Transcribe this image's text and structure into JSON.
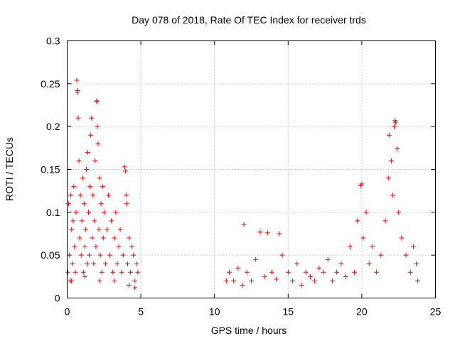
{
  "chart_data": {
    "type": "scatter",
    "title": "Day 078 of 2018, Rate Of TEC Index for receiver trds",
    "xlabel": "GPS time / hours",
    "ylabel": "ROTI / TECUs",
    "xlim": [
      0,
      25
    ],
    "ylim": [
      0,
      0.3
    ],
    "x_ticks": [
      0,
      5,
      10,
      15,
      20,
      25
    ],
    "x_tick_labels": [
      "0",
      "5",
      "10",
      "15",
      "20",
      "25"
    ],
    "y_ticks": [
      0,
      0.05,
      0.1,
      0.15,
      0.2,
      0.25,
      0.3
    ],
    "y_tick_labels": [
      "0",
      "0.05",
      "0.1",
      "0.15",
      "0.2",
      "0.25",
      "0.3"
    ],
    "grid": true,
    "marker": "+",
    "color": "#ff0000",
    "series": [
      {
        "name": "ROTI",
        "points": [
          [
            0.05,
            0.03
          ],
          [
            0.1,
            0.11
          ],
          [
            0.15,
            0.05
          ],
          [
            0.2,
            0.02
          ],
          [
            0.25,
            0.12
          ],
          [
            0.3,
            0.08
          ],
          [
            0.35,
            0.04
          ],
          [
            0.4,
            0.09
          ],
          [
            0.45,
            0.13
          ],
          [
            0.5,
            0.06
          ],
          [
            0.55,
            0.03
          ],
          [
            0.6,
            0.1
          ],
          [
            0.65,
            0.254
          ],
          [
            0.7,
            0.24
          ],
          [
            0.72,
            0.242
          ],
          [
            0.75,
            0.21
          ],
          [
            0.8,
            0.16
          ],
          [
            0.85,
            0.07
          ],
          [
            0.9,
            0.12
          ],
          [
            0.95,
            0.05
          ],
          [
            1.0,
            0.09
          ],
          [
            1.05,
            0.14
          ],
          [
            1.1,
            0.03
          ],
          [
            1.15,
            0.11
          ],
          [
            1.2,
            0.06
          ],
          [
            1.25,
            0.08
          ],
          [
            1.3,
            0.15
          ],
          [
            1.35,
            0.04
          ],
          [
            1.4,
            0.17
          ],
          [
            1.45,
            0.1
          ],
          [
            1.5,
            0.05
          ],
          [
            1.55,
            0.13
          ],
          [
            1.6,
            0.19
          ],
          [
            1.65,
            0.21
          ],
          [
            1.7,
            0.07
          ],
          [
            1.75,
            0.12
          ],
          [
            1.8,
            0.04
          ],
          [
            1.85,
            0.09
          ],
          [
            1.9,
            0.16
          ],
          [
            1.95,
            0.06
          ],
          [
            2.0,
            0.23
          ],
          [
            2.02,
            0.229
          ],
          [
            2.05,
            0.2
          ],
          [
            2.1,
            0.18
          ],
          [
            2.15,
            0.08
          ],
          [
            2.2,
            0.14
          ],
          [
            2.25,
            0.05
          ],
          [
            2.3,
            0.11
          ],
          [
            2.35,
            0.03
          ],
          [
            2.4,
            0.13
          ],
          [
            2.45,
            0.07
          ],
          [
            2.5,
            0.1
          ],
          [
            2.6,
            0.04
          ],
          [
            2.7,
            0.08
          ],
          [
            2.8,
            0.12
          ],
          [
            2.9,
            0.05
          ],
          [
            3.0,
            0.09
          ],
          [
            3.1,
            0.03
          ],
          [
            3.2,
            0.07
          ],
          [
            3.3,
            0.1
          ],
          [
            3.4,
            0.04
          ],
          [
            3.5,
            0.06
          ],
          [
            3.6,
            0.08
          ],
          [
            3.7,
            0.03
          ],
          [
            3.8,
            0.05
          ],
          [
            3.9,
            0.153
          ],
          [
            3.95,
            0.148
          ],
          [
            4.0,
            0.12
          ],
          [
            4.05,
            0.11
          ],
          [
            4.1,
            0.04
          ],
          [
            4.2,
            0.07
          ],
          [
            4.3,
            0.03
          ],
          [
            4.4,
            0.06
          ],
          [
            4.5,
            0.05
          ],
          [
            4.6,
            0.02
          ],
          [
            4.7,
            0.04
          ],
          [
            4.8,
            0.03
          ],
          [
            0.3,
            0.02
          ],
          [
            1.2,
            0.025
          ],
          [
            2.2,
            0.02
          ],
          [
            3.2,
            0.02
          ],
          [
            4.2,
            0.015
          ],
          [
            4.6,
            0.012
          ],
          [
            10.8,
            0.02
          ],
          [
            11.0,
            0.03
          ],
          [
            11.3,
            0.02
          ],
          [
            11.6,
            0.035
          ],
          [
            11.9,
            0.015
          ],
          [
            12.0,
            0.086
          ],
          [
            12.2,
            0.03
          ],
          [
            12.5,
            0.02
          ],
          [
            12.8,
            0.045
          ],
          [
            13.1,
            0.077
          ],
          [
            13.4,
            0.025
          ],
          [
            13.6,
            0.076
          ],
          [
            13.9,
            0.03
          ],
          [
            14.2,
            0.022
          ],
          [
            14.4,
            0.075
          ],
          [
            14.6,
            0.05
          ],
          [
            15.0,
            0.03
          ],
          [
            15.3,
            0.02
          ],
          [
            15.6,
            0.04
          ],
          [
            15.9,
            0.015
          ],
          [
            16.2,
            0.03
          ],
          [
            16.5,
            0.025
          ],
          [
            16.8,
            0.02
          ],
          [
            17.1,
            0.035
          ],
          [
            17.4,
            0.03
          ],
          [
            17.7,
            0.045
          ],
          [
            18.0,
            0.02
          ],
          [
            18.3,
            0.03
          ],
          [
            18.6,
            0.04
          ],
          [
            18.9,
            0.025
          ],
          [
            19.2,
            0.06
          ],
          [
            19.5,
            0.03
          ],
          [
            19.7,
            0.09
          ],
          [
            19.9,
            0.131
          ],
          [
            20.0,
            0.133
          ],
          [
            20.1,
            0.07
          ],
          [
            20.3,
            0.1
          ],
          [
            20.5,
            0.04
          ],
          [
            20.7,
            0.06
          ],
          [
            21.0,
            0.03
          ],
          [
            21.3,
            0.05
          ],
          [
            21.6,
            0.09
          ],
          [
            21.8,
            0.14
          ],
          [
            21.85,
            0.19
          ],
          [
            22.0,
            0.16
          ],
          [
            22.1,
            0.12
          ],
          [
            22.2,
            0.2
          ],
          [
            22.25,
            0.207
          ],
          [
            22.3,
            0.205
          ],
          [
            22.4,
            0.174
          ],
          [
            22.5,
            0.1
          ],
          [
            22.7,
            0.07
          ],
          [
            23.0,
            0.05
          ],
          [
            23.3,
            0.03
          ],
          [
            23.5,
            0.06
          ],
          [
            23.7,
            0.04
          ],
          [
            23.8,
            0.02
          ]
        ]
      }
    ]
  }
}
